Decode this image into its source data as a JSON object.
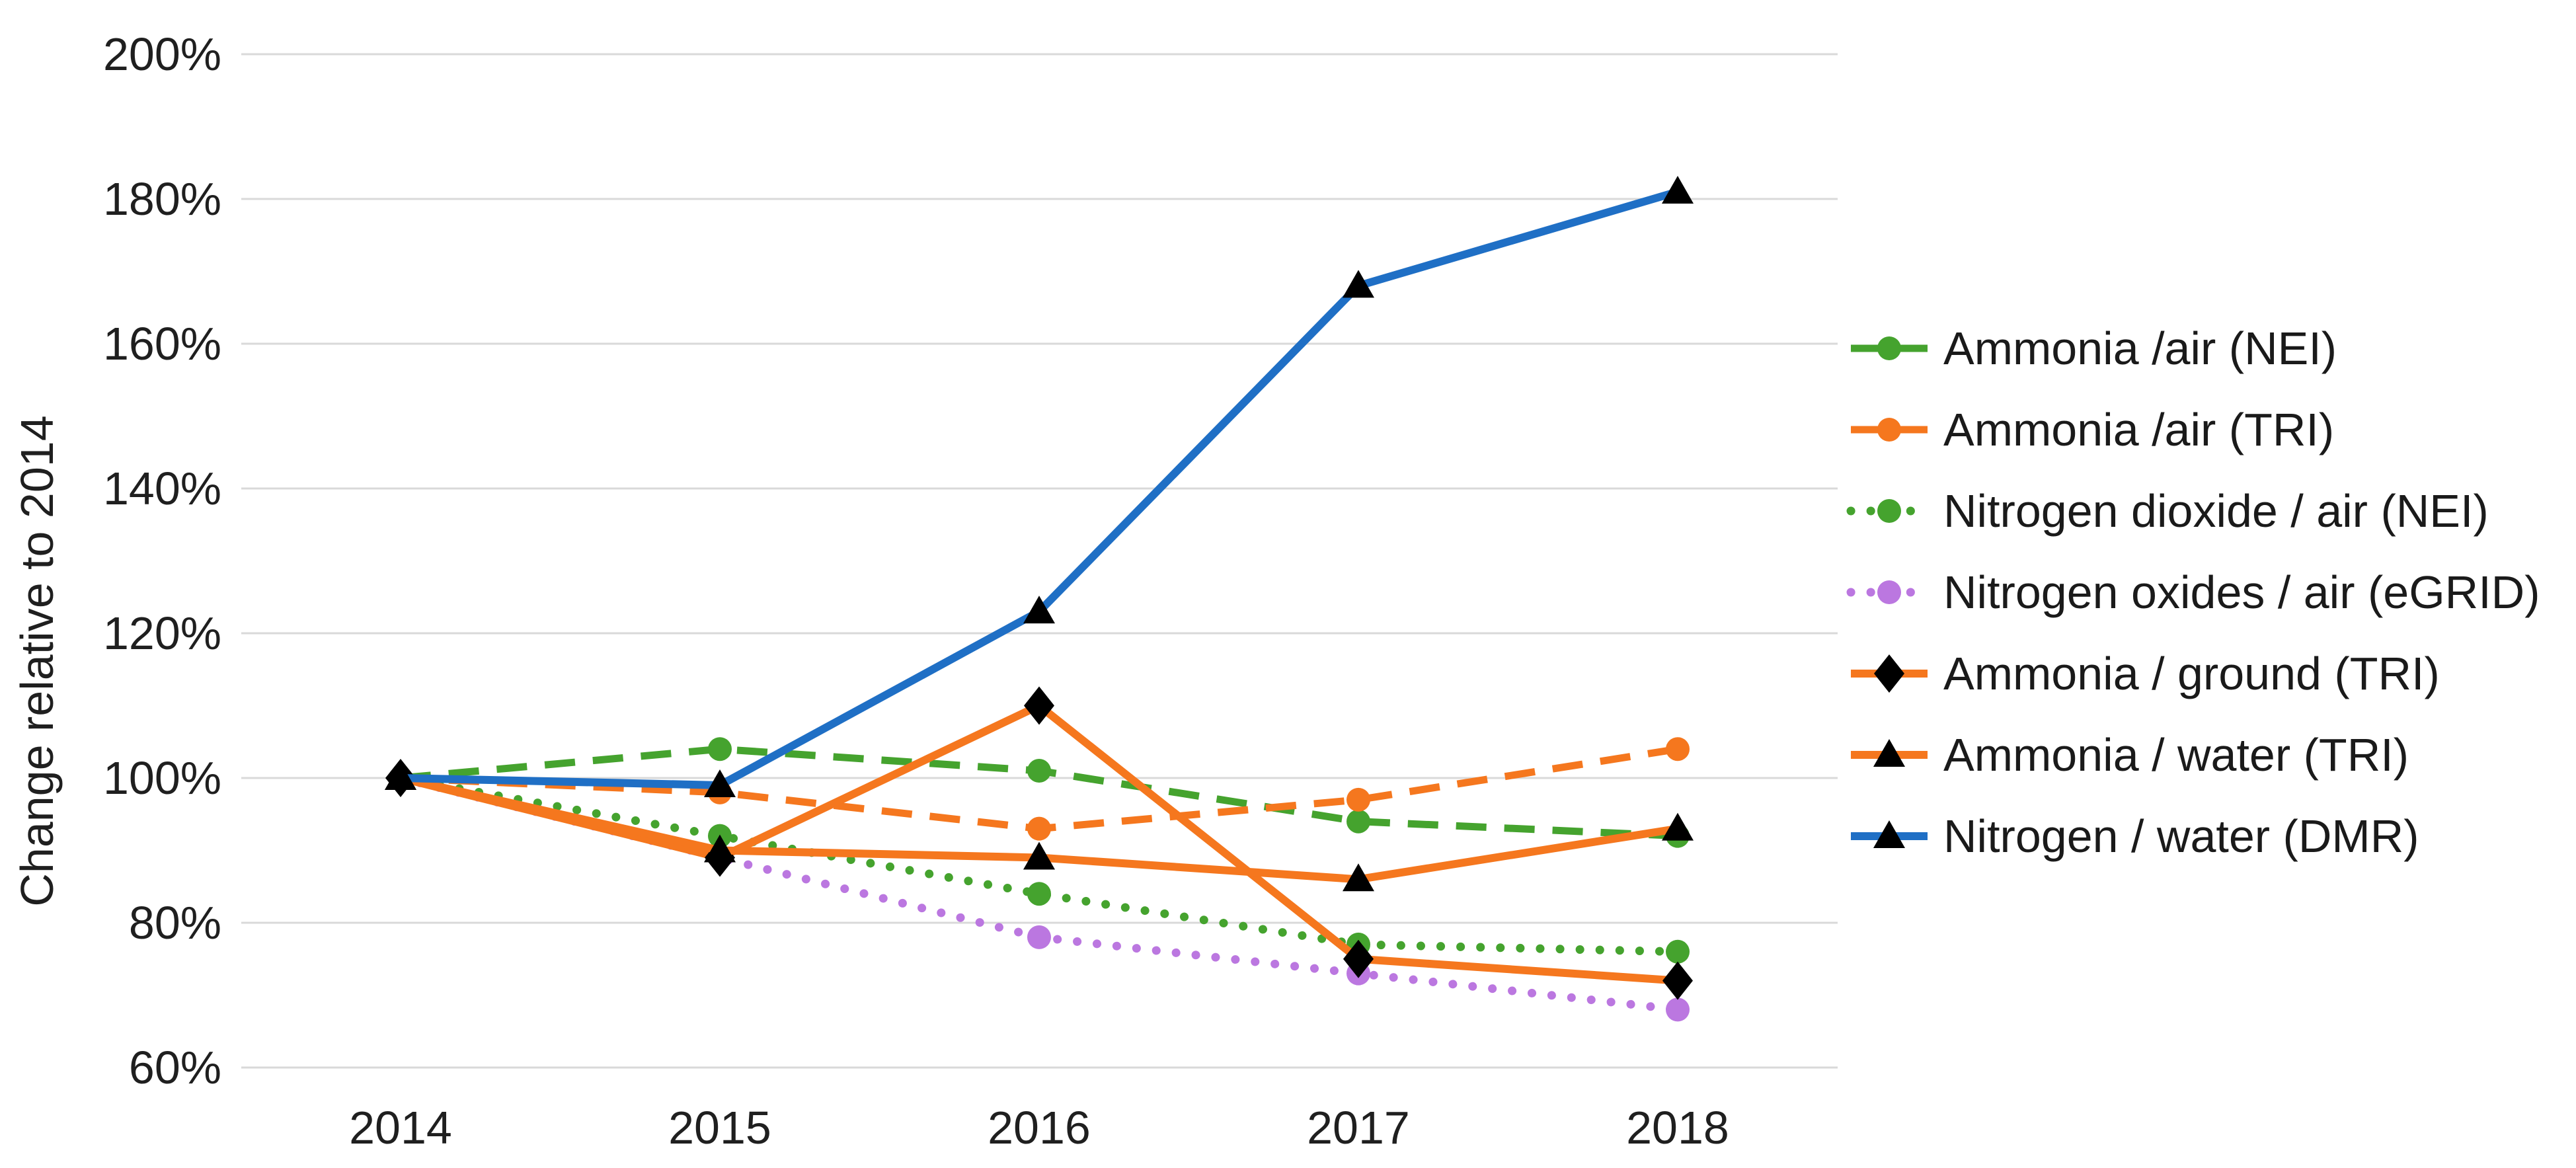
{
  "chart_data": {
    "type": "line",
    "title": "",
    "xlabel": "",
    "ylabel": "Change relative to 2014",
    "x": [
      "2014",
      "2015",
      "2016",
      "2017",
      "2018"
    ],
    "y_ticks": [
      "200%",
      "180%",
      "160%",
      "140%",
      "120%",
      "100%",
      "80%",
      "60%"
    ],
    "ylim": [
      60,
      200
    ],
    "y_tick_step": 20,
    "grid": "horizontal",
    "gridline_color": "#d9d9d9",
    "axis_text_color": "#1f1f1f",
    "legend_position": "right",
    "series": [
      {
        "name": "Ammonia /air (NEI)",
        "color": "#45a32e",
        "line_style": "dashed",
        "marker": "circle",
        "marker_color": "#45a32e",
        "values": [
          100,
          104,
          101,
          94,
          92
        ]
      },
      {
        "name": "Ammonia /air (TRI)",
        "color": "#f5771e",
        "line_style": "dashed",
        "marker": "circle",
        "marker_color": "#f5771e",
        "values": [
          100,
          98,
          93,
          97,
          104
        ]
      },
      {
        "name": "Nitrogen dioxide / air (NEI)",
        "color": "#45a32e",
        "line_style": "dotted",
        "marker": "circle",
        "marker_color": "#45a32e",
        "values": [
          100,
          92,
          84,
          77,
          76
        ]
      },
      {
        "name": "Nitrogen oxides / air (eGRID)",
        "color": "#bb77e0",
        "line_style": "dotted",
        "marker": "circle",
        "marker_color": "#bb77e0",
        "values": [
          100,
          89,
          78,
          73,
          68
        ]
      },
      {
        "name": "Ammonia / ground (TRI)",
        "color": "#f5771e",
        "line_style": "solid",
        "marker": "diamond",
        "marker_color": "#000000",
        "values": [
          100,
          89,
          110,
          75,
          72
        ]
      },
      {
        "name": "Ammonia / water (TRI)",
        "color": "#f5771e",
        "line_style": "solid",
        "marker": "triangle",
        "marker_color": "#000000",
        "values": [
          100,
          90,
          89,
          86,
          93
        ]
      },
      {
        "name": "Nitrogen / water (DMR)",
        "color": "#1f6fc5",
        "line_style": "solid",
        "marker": "triangle",
        "marker_color": "#000000",
        "values": [
          100,
          99,
          123,
          168,
          181
        ]
      }
    ]
  }
}
